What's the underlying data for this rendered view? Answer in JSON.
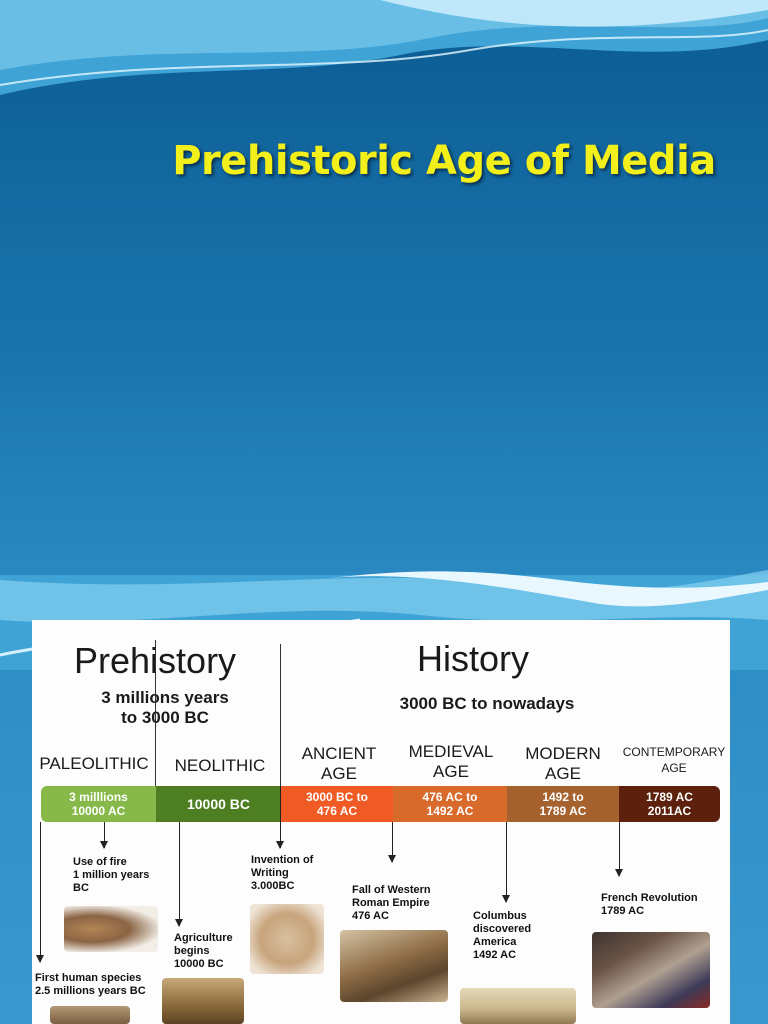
{
  "title": "Prehistoric Age of Media",
  "timeline": {
    "prehistory": {
      "heading": "Prehistory",
      "range_line1": "3 millions years",
      "range_line2": "to 3000 BC"
    },
    "history": {
      "heading": "History",
      "range": "3000 BC to nowadays"
    },
    "eras": [
      {
        "name": "PALEOLITHIC",
        "range_line1": "3 milllions",
        "range_line2": "10000 AC",
        "color": "#86b94a"
      },
      {
        "name": "NEOLITHIC",
        "range_line1": "10000 BC",
        "color": "#4d7f22"
      },
      {
        "name_line1": "ANCIENT",
        "name_line2": "AGE",
        "range_line1": "3000 BC to",
        "range_line2": "476 AC",
        "color": "#f05a24"
      },
      {
        "name_line1": "MEDIEVAL",
        "name_line2": "AGE",
        "range_line1": "476 AC to",
        "range_line2": "1492 AC",
        "color": "#d86a2c"
      },
      {
        "name_line1": "MODERN",
        "name_line2": "AGE",
        "range_line1": "1492 to",
        "range_line2": "1789 AC",
        "color": "#a5622e"
      },
      {
        "name_line1": "CONTEMPORARY",
        "name_line2": "AGE",
        "range_line1": "1789 AC",
        "range_line2": "2011AC",
        "color": "#5c200c"
      }
    ],
    "events": [
      {
        "line1": "Use of fire",
        "line2": "1 million years",
        "line3": "BC"
      },
      {
        "line1": "First human species",
        "line2": "2.5 millions years BC"
      },
      {
        "line1": "Agriculture",
        "line2": "begins",
        "line3": "10000 BC"
      },
      {
        "line1": "Invention of",
        "line2": "Writing",
        "line3": "3.000BC"
      },
      {
        "line1": "Fall of Western",
        "line2": "Roman Empire",
        "line3": "476 AC"
      },
      {
        "line1": "Columbus",
        "line2": "discovered",
        "line3": "America",
        "line4": "1492 AC"
      },
      {
        "line1": "French Revolution",
        "line2": "1789 AC"
      }
    ]
  },
  "colors": {
    "title": "#f3ef1a",
    "background_top": "#0b5c93",
    "background_bottom": "#3a98cf"
  }
}
